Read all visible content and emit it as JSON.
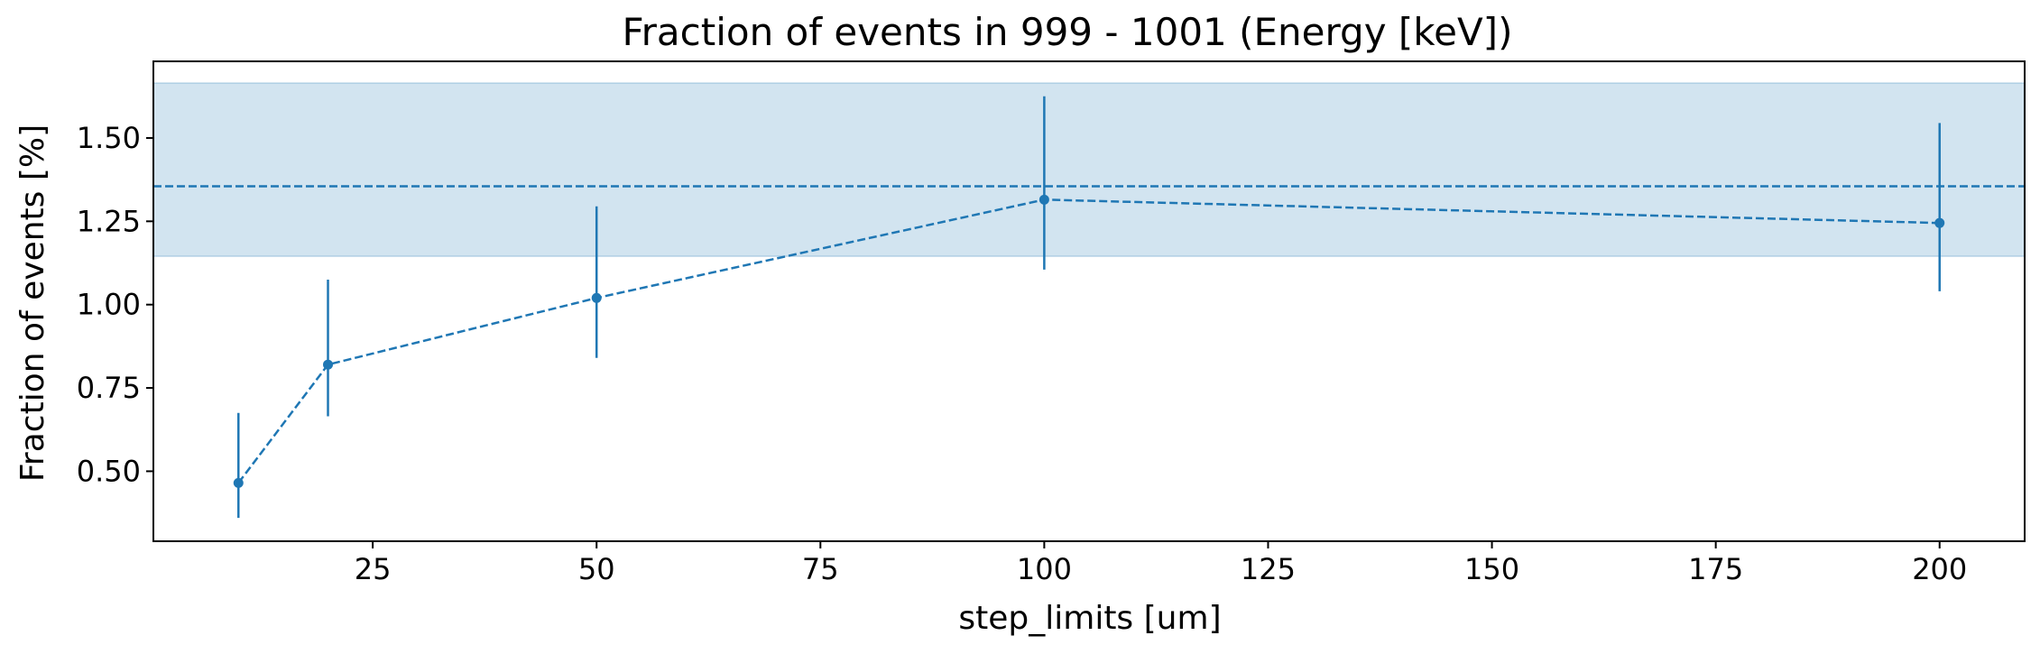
{
  "chart_data": {
    "type": "line",
    "title": "Fraction of events in 999 - 1001 (Energy [keV])",
    "xlabel": "step_limits [um]",
    "ylabel": "Fraction of events [%]",
    "xlim": [
      0.5,
      209.5
    ],
    "ylim": [
      0.29,
      1.73
    ],
    "xticks": [
      25,
      50,
      75,
      100,
      125,
      150,
      175,
      200
    ],
    "yticks": [
      0.5,
      0.75,
      1.0,
      1.25,
      1.5
    ],
    "ytick_labels": [
      "0.50",
      "0.75",
      "1.00",
      "1.25",
      "1.50"
    ],
    "grid": false,
    "colors": {
      "series": "#1f77b4",
      "band_fill": "#1f77b4",
      "band_opacity": 0.2
    },
    "series": [
      {
        "x": [
          10,
          20,
          50,
          100,
          200
        ],
        "y": [
          0.465,
          0.82,
          1.02,
          1.315,
          1.245
        ],
        "yerr_low": [
          0.36,
          0.665,
          0.84,
          1.105,
          1.04
        ],
        "yerr_high": [
          0.675,
          1.075,
          1.295,
          1.625,
          1.545
        ],
        "linestyle": "dashed",
        "marker": "circle"
      }
    ],
    "reference": {
      "value": 1.355,
      "band": [
        1.145,
        1.665
      ],
      "linestyle": "dashed"
    }
  }
}
